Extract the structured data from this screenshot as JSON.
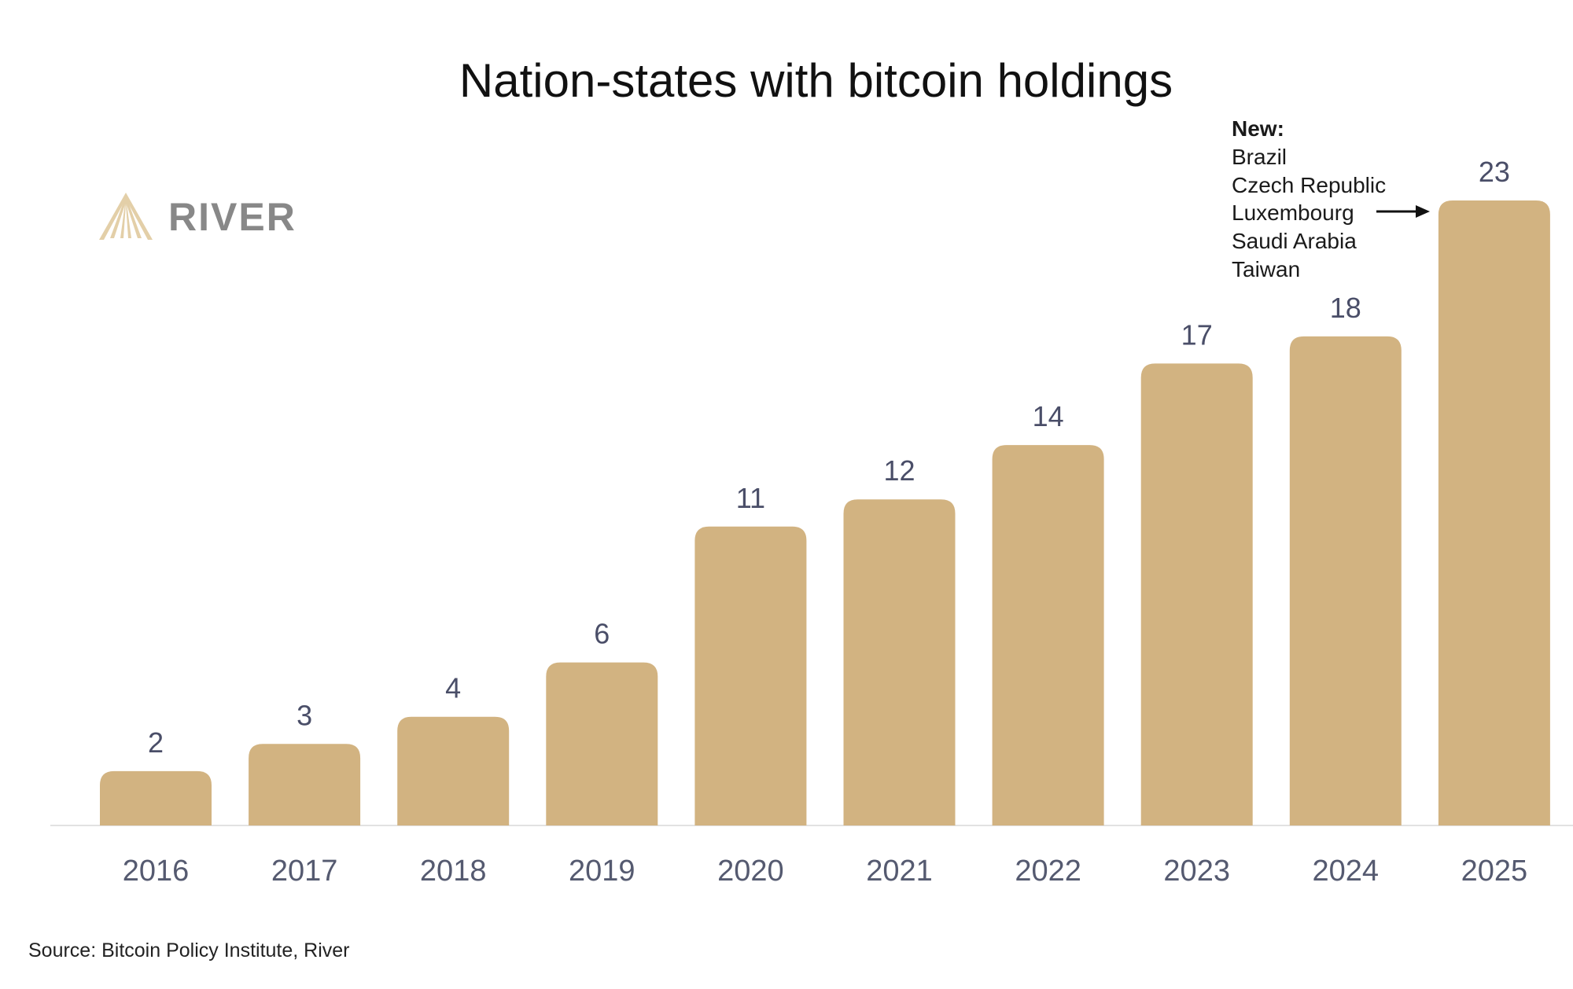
{
  "chart_data": {
    "type": "bar",
    "title": "Nation-states with bitcoin holdings",
    "categories": [
      "2016",
      "2017",
      "2018",
      "2019",
      "2020",
      "2021",
      "2022",
      "2023",
      "2024",
      "2025"
    ],
    "values": [
      2,
      3,
      4,
      6,
      11,
      12,
      14,
      17,
      18,
      23
    ],
    "xlabel": "",
    "ylabel": "",
    "ylim": [
      0,
      23
    ],
    "grid": false,
    "bar_color": "#d2b381",
    "annotation": {
      "heading": "New:",
      "items": [
        "Brazil",
        "Czech Republic",
        "Luxembourg",
        "Saudi Arabia",
        "Taiwan"
      ],
      "target": "2025"
    },
    "source": "Source: Bitcoin Policy Institute, River"
  },
  "logo": {
    "text": "RIVER",
    "text_color": "#888888",
    "mark_color": "#e3cfa8"
  }
}
